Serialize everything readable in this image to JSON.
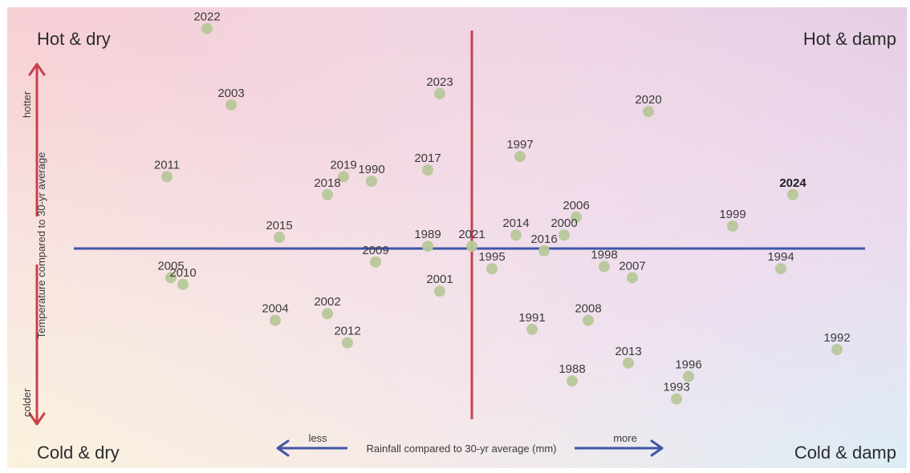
{
  "chart_data": {
    "type": "scatter",
    "xlabel": "Rainfall compared to 30-yr average (mm)",
    "ylabel": "Temperature compared to 30-yr average",
    "x_less_label": "less",
    "x_more_label": "more",
    "y_hotter_label": "hotter",
    "y_colder_label": "colder",
    "quadrants": {
      "top_left": "Hot & dry",
      "top_right": "Hot & damp",
      "bottom_left": "Cold & dry",
      "bottom_right": "Cold & damp"
    },
    "xlim": [
      -100,
      100
    ],
    "ylim": [
      -100,
      100
    ],
    "highlight_year": "2024",
    "colors": {
      "point": "#b7c79a",
      "vertical_axis": "#c8414a",
      "horizontal_axis": "#3f56a6",
      "arrow_up": "#c8414a",
      "arrow_down": "#c8414a",
      "arrow_horizontal": "#3f56a6"
    },
    "points": [
      {
        "label": "2022",
        "x": -66,
        "y": 98
      },
      {
        "label": "2003",
        "x": -60,
        "y": 64
      },
      {
        "label": "2023",
        "x": -8,
        "y": 69
      },
      {
        "label": "2020",
        "x": 44,
        "y": 61
      },
      {
        "label": "1997",
        "x": 12,
        "y": 41
      },
      {
        "label": "2011",
        "x": -76,
        "y": 32
      },
      {
        "label": "2019",
        "x": -32,
        "y": 32
      },
      {
        "label": "1990",
        "x": -25,
        "y": 30
      },
      {
        "label": "2017",
        "x": -11,
        "y": 35
      },
      {
        "label": "2018",
        "x": -36,
        "y": 24
      },
      {
        "label": "2024",
        "x": 80,
        "y": 24
      },
      {
        "label": "2006",
        "x": 26,
        "y": 14
      },
      {
        "label": "1999",
        "x": 65,
        "y": 10
      },
      {
        "label": "2014",
        "x": 11,
        "y": 6
      },
      {
        "label": "2000",
        "x": 23,
        "y": 6
      },
      {
        "label": "2015",
        "x": -48,
        "y": 5
      },
      {
        "label": "1989",
        "x": -11,
        "y": 1
      },
      {
        "label": "2021",
        "x": 0,
        "y": 1
      },
      {
        "label": "2016",
        "x": 18,
        "y": -1
      },
      {
        "label": "1995",
        "x": 5,
        "y": -9
      },
      {
        "label": "1998",
        "x": 33,
        "y": -8
      },
      {
        "label": "2007",
        "x": 40,
        "y": -13
      },
      {
        "label": "1994",
        "x": 77,
        "y": -9
      },
      {
        "label": "2005",
        "x": -75,
        "y": -13
      },
      {
        "label": "2010",
        "x": -72,
        "y": -16
      },
      {
        "label": "2009",
        "x": -24,
        "y": -6
      },
      {
        "label": "2001",
        "x": -8,
        "y": -19
      },
      {
        "label": "2004",
        "x": -49,
        "y": -32
      },
      {
        "label": "2002",
        "x": -36,
        "y": -29
      },
      {
        "label": "2012",
        "x": -31,
        "y": -42
      },
      {
        "label": "1991",
        "x": 15,
        "y": -36
      },
      {
        "label": "2008",
        "x": 29,
        "y": -32
      },
      {
        "label": "1992",
        "x": 91,
        "y": -45
      },
      {
        "label": "2013",
        "x": 39,
        "y": -51
      },
      {
        "label": "1996",
        "x": 54,
        "y": -57
      },
      {
        "label": "1988",
        "x": 25,
        "y": -59
      },
      {
        "label": "1993",
        "x": 51,
        "y": -67
      }
    ]
  }
}
